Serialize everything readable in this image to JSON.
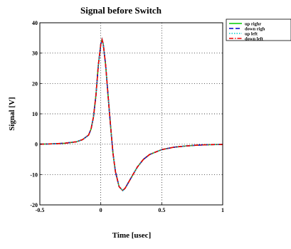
{
  "chart_data": {
    "type": "line",
    "title": "Signal before Switch",
    "xlabel": "Time [usec]",
    "ylabel": "Signal [V]",
    "xlim": [
      -0.5,
      1
    ],
    "ylim": [
      -20,
      40
    ],
    "xticks": [
      -0.5,
      0,
      0.5,
      1
    ],
    "xtick_labels": [
      "-0.5",
      "0",
      "0.5",
      "1"
    ],
    "yticks": [
      -20,
      -10,
      0,
      10,
      20,
      30,
      40
    ],
    "ytick_labels": [
      "-20",
      "-10",
      "0",
      "10",
      "20",
      "30",
      "40"
    ],
    "grid": true,
    "legend_position": "outside-top-right",
    "x": [
      -0.5,
      -0.4,
      -0.3,
      -0.2,
      -0.15,
      -0.1,
      -0.08,
      -0.06,
      -0.04,
      -0.02,
      0,
      0.01,
      0.02,
      0.04,
      0.06,
      0.08,
      0.1,
      0.12,
      0.15,
      0.18,
      0.2,
      0.25,
      0.3,
      0.35,
      0.4,
      0.5,
      0.6,
      0.7,
      0.8,
      0.9,
      1.0
    ],
    "series": [
      {
        "name": "up right",
        "color": "#00cc00",
        "dash": "solid",
        "values": [
          0,
          0.1,
          0.3,
          0.8,
          1.5,
          3,
          5,
          9,
          16,
          26,
          33,
          34.5,
          33,
          26,
          16,
          6,
          -3,
          -9,
          -14,
          -15.3,
          -14.5,
          -11,
          -7.5,
          -5,
          -3.4,
          -1.8,
          -1,
          -0.6,
          -0.3,
          -0.15,
          -0.1
        ]
      },
      {
        "name": "down right",
        "color": "#0000cc",
        "dash": "6,3",
        "values": [
          0,
          0.1,
          0.3,
          0.8,
          1.5,
          3,
          5,
          9,
          16,
          26,
          33,
          34.5,
          33,
          26,
          16,
          6,
          -3,
          -9,
          -14,
          -15.3,
          -14.5,
          -11,
          -7.5,
          -5,
          -3.4,
          -1.8,
          -1,
          -0.6,
          -0.3,
          -0.15,
          -0.1
        ]
      },
      {
        "name": "up left",
        "color": "#00cccc",
        "dash": "1.5,2",
        "values": [
          0,
          0.1,
          0.3,
          0.8,
          1.5,
          3,
          5,
          9,
          16,
          26,
          33,
          34.5,
          33,
          26,
          16,
          6,
          -3,
          -9,
          -14,
          -15.3,
          -14.5,
          -11,
          -7.5,
          -5,
          -3.4,
          -1.8,
          -1,
          -0.6,
          -0.3,
          -0.15,
          -0.1
        ]
      },
      {
        "name": "down left",
        "color": "#ee0000",
        "dash": "6,2,1.5,2",
        "values": [
          0,
          0.1,
          0.3,
          0.8,
          1.5,
          3,
          5,
          9,
          16,
          26,
          33,
          34.5,
          33,
          26,
          16,
          6,
          -3,
          -9,
          -14,
          -15.3,
          -14.5,
          -11,
          -7.5,
          -5,
          -3.4,
          -1.8,
          -1,
          -0.6,
          -0.3,
          -0.15,
          -0.1
        ]
      }
    ]
  },
  "legend": {
    "labels": [
      "up righr",
      "down righ",
      "up left",
      "down left"
    ]
  }
}
